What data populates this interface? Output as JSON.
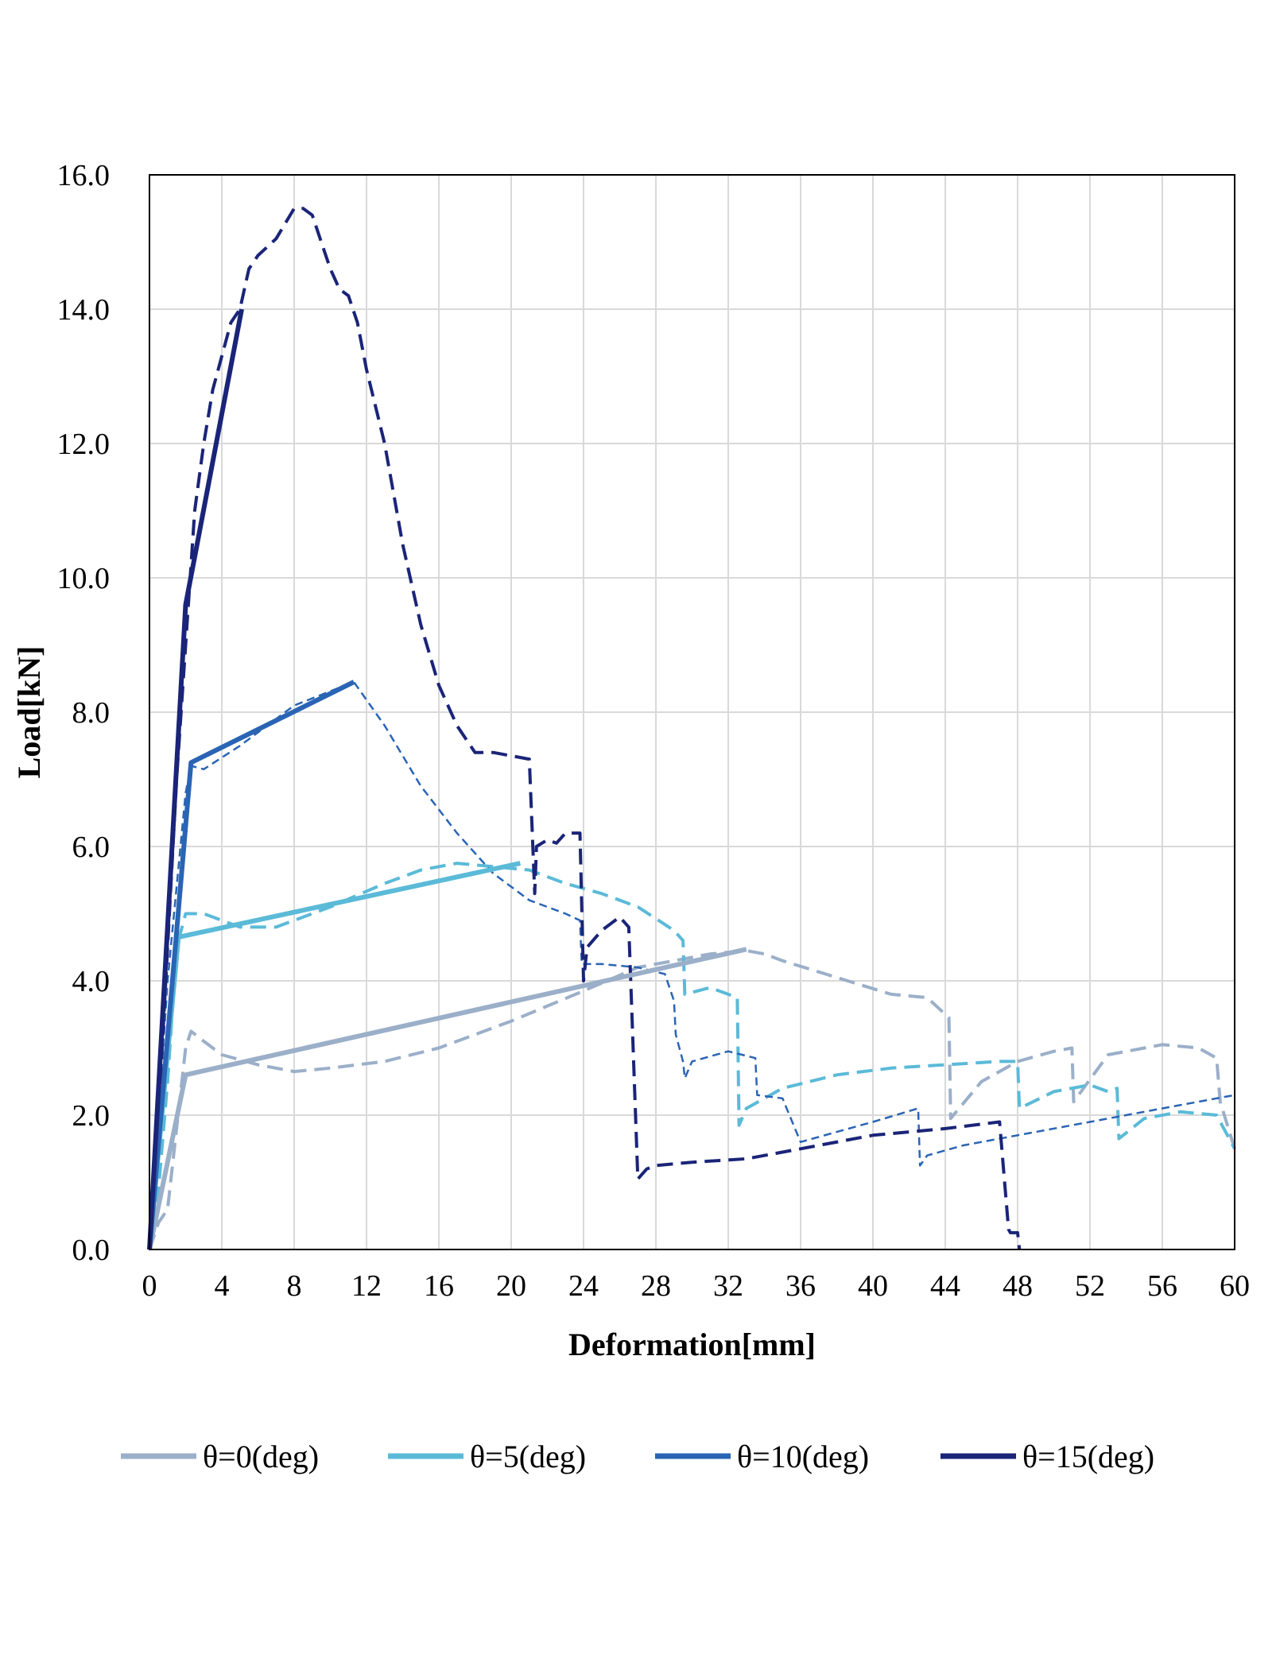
{
  "chart_data": {
    "type": "line",
    "title": "",
    "xlabel": "Deformation[mm]",
    "ylabel": "Load[kN]",
    "xlim": [
      0,
      60
    ],
    "ylim": [
      0,
      16
    ],
    "xticks": [
      0,
      4,
      8,
      12,
      16,
      20,
      24,
      28,
      32,
      36,
      40,
      44,
      48,
      52,
      56,
      60
    ],
    "xtick_labels": [
      "0",
      "4",
      "8",
      "12",
      "16",
      "20",
      "24",
      "28",
      "32",
      "36",
      "40",
      "44",
      "48",
      "52",
      "56",
      "60"
    ],
    "yticks": [
      0,
      2,
      4,
      6,
      8,
      10,
      12,
      14,
      16
    ],
    "ytick_labels": [
      "0.0",
      "2.0",
      "4.0",
      "6.0",
      "8.0",
      "10.0",
      "12.0",
      "14.0",
      "16.0"
    ],
    "grid": true,
    "legend_position": "bottom",
    "series": [
      {
        "name": "θ=0(deg)",
        "color": "#9BAFC9",
        "in_legend": true,
        "style": "solid-bilinear",
        "x": [
          0,
          2,
          33
        ],
        "y": [
          0,
          2.6,
          4.47
        ]
      },
      {
        "name": "θ=5(deg)",
        "color": "#5BBAD8",
        "in_legend": true,
        "style": "solid-bilinear",
        "x": [
          0,
          1.6,
          20.5
        ],
        "y": [
          0,
          4.65,
          5.75
        ]
      },
      {
        "name": "θ=10(deg)",
        "color": "#2A64B4",
        "in_legend": true,
        "style": "solid-bilinear",
        "x": [
          0,
          2.3,
          11.3
        ],
        "y": [
          0,
          7.25,
          8.45
        ]
      },
      {
        "name": "θ=15(deg)",
        "color": "#1A2478",
        "in_legend": true,
        "style": "solid-bilinear",
        "x": [
          0,
          2,
          5.1
        ],
        "y": [
          0,
          9.6,
          14.0
        ]
      },
      {
        "name": "θ=0(deg) test",
        "color": "#9BAFC9",
        "in_legend": false,
        "style": "dashed",
        "x": [
          0,
          0.5,
          1,
          1.5,
          2,
          2.3,
          3,
          4,
          6,
          8,
          10,
          13,
          16,
          20,
          24,
          27,
          29,
          31,
          33,
          34,
          35,
          38,
          41,
          43,
          44.2,
          44.3,
          46,
          48,
          50,
          51,
          51.1,
          53,
          56,
          58,
          59,
          59.2,
          60
        ],
        "y": [
          0,
          0.4,
          0.6,
          1.8,
          3.0,
          3.25,
          3.1,
          2.9,
          2.75,
          2.65,
          2.7,
          2.8,
          3.0,
          3.4,
          3.85,
          4.2,
          4.3,
          4.4,
          4.45,
          4.4,
          4.3,
          4.05,
          3.8,
          3.75,
          3.45,
          1.95,
          2.5,
          2.8,
          2.95,
          3.0,
          2.2,
          2.9,
          3.05,
          3.0,
          2.85,
          2.2,
          1.5
        ]
      },
      {
        "name": "θ=5(deg) test",
        "color": "#5BBAD8",
        "in_legend": true,
        "style": "dashed",
        "x": [
          0,
          0.5,
          1,
          1.5,
          2,
          3,
          5,
          7,
          10,
          13,
          15,
          17,
          19,
          21,
          23,
          25,
          27,
          29,
          29.5,
          29.6,
          31,
          32.5,
          32.6,
          33,
          35,
          38,
          41,
          44,
          47,
          48,
          48.1,
          50,
          52,
          53,
          53.5,
          53.6,
          55,
          57,
          59,
          60
        ],
        "y": [
          0,
          0.9,
          2.5,
          4.5,
          5.0,
          5.0,
          4.8,
          4.8,
          5.1,
          5.45,
          5.65,
          5.75,
          5.7,
          5.65,
          5.45,
          5.3,
          5.1,
          4.75,
          4.6,
          3.8,
          3.9,
          3.75,
          1.85,
          2.1,
          2.4,
          2.6,
          2.7,
          2.75,
          2.8,
          2.8,
          2.1,
          2.35,
          2.45,
          2.35,
          2.4,
          1.65,
          1.95,
          2.05,
          2.0,
          1.5
        ]
      },
      {
        "name": "θ=10(deg) test",
        "color": "#2A64B4",
        "in_legend": false,
        "style": "dashed-thin",
        "x": [
          0,
          1,
          2,
          2.3,
          3,
          5,
          8,
          11.3,
          13,
          15,
          17,
          19,
          21,
          23,
          23.8,
          23.9,
          25,
          27,
          28.5,
          29,
          29.1,
          29.5,
          29.6,
          30,
          32,
          33.5,
          33.6,
          35,
          36,
          38,
          40,
          42.5,
          42.6,
          43,
          45,
          48,
          52,
          56,
          60
        ],
        "y": [
          0,
          4.0,
          6.8,
          7.2,
          7.15,
          7.5,
          8.1,
          8.45,
          7.8,
          6.9,
          6.2,
          5.6,
          5.2,
          5.0,
          4.9,
          4.25,
          4.25,
          4.2,
          4.1,
          3.7,
          3.2,
          2.8,
          2.55,
          2.8,
          2.95,
          2.85,
          2.3,
          2.25,
          1.6,
          1.75,
          1.9,
          2.1,
          1.25,
          1.4,
          1.55,
          1.7,
          1.9,
          2.1,
          2.3
        ]
      },
      {
        "name": "θ=15(deg) test",
        "color": "#1A2478",
        "in_legend": false,
        "style": "dashed",
        "x": [
          0,
          0.5,
          1,
          1.5,
          2,
          2.5,
          3,
          3.5,
          4,
          4.5,
          5,
          5.5,
          6,
          7,
          8,
          8.5,
          9,
          9.5,
          10,
          10.5,
          11,
          11.5,
          12,
          13,
          14,
          15,
          16,
          17,
          18,
          19,
          20,
          21,
          21.3,
          21.4,
          22,
          22.5,
          23,
          23.8,
          24,
          24.2,
          25,
          26,
          26.5,
          27,
          27.5,
          28,
          30,
          33,
          36,
          40,
          44,
          47,
          47.5,
          47.6,
          48,
          48.1
        ],
        "y": [
          0,
          2.0,
          4.5,
          7.0,
          9.0,
          11.0,
          12.0,
          12.8,
          13.3,
          13.8,
          14.0,
          14.6,
          14.8,
          15.05,
          15.5,
          15.5,
          15.4,
          15.0,
          14.6,
          14.3,
          14.2,
          13.8,
          13.1,
          12.0,
          10.5,
          9.3,
          8.4,
          7.8,
          7.4,
          7.4,
          7.35,
          7.3,
          5.3,
          6.0,
          6.1,
          6.05,
          6.2,
          6.2,
          4.0,
          4.5,
          4.75,
          4.95,
          4.8,
          1.05,
          1.2,
          1.25,
          1.3,
          1.35,
          1.5,
          1.7,
          1.8,
          1.9,
          0.3,
          0.25,
          0.25,
          0.0
        ]
      }
    ]
  },
  "legend": {
    "items": [
      {
        "label": "θ=0(deg)",
        "color": "#9BAFC9"
      },
      {
        "label": "θ=5(deg)",
        "color": "#5BBAD8"
      },
      {
        "label": "θ=10(deg)",
        "color": "#2A64B4"
      },
      {
        "label": "θ=15(deg)",
        "color": "#1A2478"
      }
    ]
  }
}
